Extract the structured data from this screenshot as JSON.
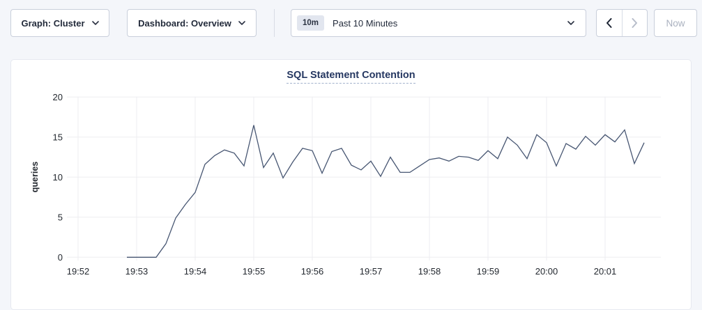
{
  "toolbar": {
    "graph_dropdown_label": "Graph: Cluster",
    "dashboard_dropdown_label": "Dashboard: Overview",
    "time_window_badge": "10m",
    "time_window_label": "Past 10 Minutes",
    "now_button_label": "Now"
  },
  "colors": {
    "series_line": "#475672",
    "grid_line": "#ededf0",
    "title_text": "#253761",
    "enabled_arrow": "#1d2534",
    "disabled_arrow": "#b7bdca",
    "disabled_text": "#aab1bf"
  },
  "chart_data": {
    "type": "line",
    "title": "SQL Statement Contention",
    "xlabel": "",
    "ylabel": "queries",
    "ylim": [
      0,
      20
    ],
    "y_ticks": [
      0,
      5,
      10,
      15,
      20
    ],
    "x_tick_labels": [
      "19:52",
      "19:53",
      "19:54",
      "19:55",
      "19:56",
      "19:57",
      "19:58",
      "19:59",
      "20:00",
      "20:01"
    ],
    "grid": true,
    "legend_position": "none",
    "series": [
      {
        "name": "SQL Statement Contention",
        "color": "#475672",
        "start_time": "19:52:50",
        "interval_seconds": 10,
        "values": [
          0,
          0,
          0,
          0,
          1.7,
          4.9,
          6.6,
          8.1,
          11.6,
          12.7,
          13.4,
          13.0,
          11.4,
          16.5,
          11.2,
          13.0,
          9.9,
          11.9,
          13.6,
          13.3,
          10.5,
          13.2,
          13.6,
          11.5,
          10.9,
          12.0,
          10.1,
          12.5,
          10.6,
          10.6,
          11.4,
          12.2,
          12.4,
          12.0,
          12.6,
          12.5,
          12.1,
          13.3,
          12.3,
          15.0,
          14.0,
          12.3,
          15.3,
          14.3,
          11.4,
          14.2,
          13.5,
          15.1,
          14.0,
          15.3,
          14.4,
          15.9,
          11.7,
          14.3
        ]
      }
    ]
  }
}
